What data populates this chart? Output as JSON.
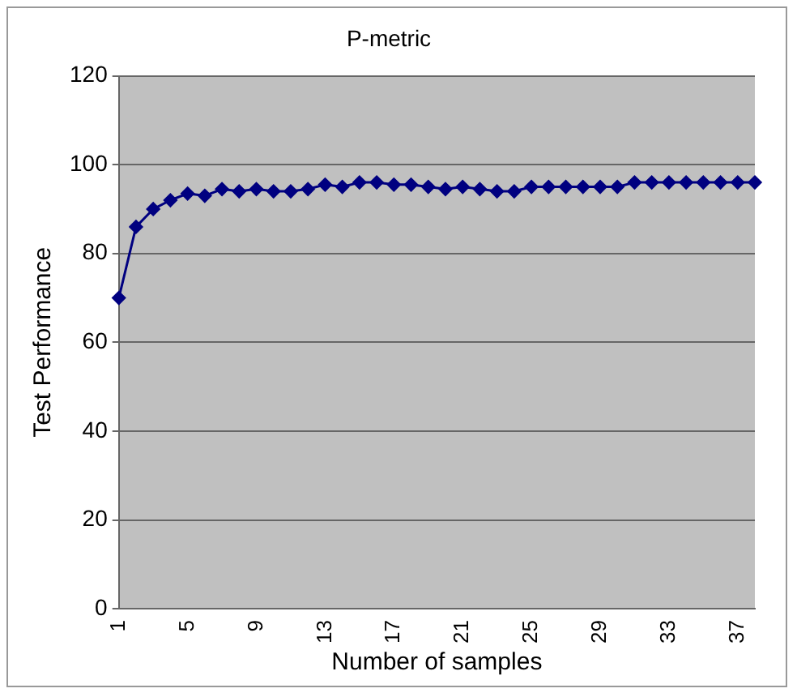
{
  "chart_data": {
    "type": "line",
    "title": "P-metric",
    "xlabel": "Number of samples",
    "ylabel": "Test Performance",
    "categories": [
      "1",
      null,
      null,
      null,
      "5",
      null,
      null,
      null,
      "9",
      null,
      null,
      null,
      "13",
      null,
      null,
      null,
      "17",
      null,
      null,
      null,
      "21",
      null,
      null,
      null,
      "25",
      null,
      null,
      null,
      "29",
      null,
      null,
      null,
      "33",
      null,
      null,
      null,
      "37",
      null
    ],
    "series": [
      {
        "color": "#000080",
        "values": [
          70,
          86,
          90,
          92,
          93.5,
          93,
          94.5,
          94,
          94.5,
          94,
          94,
          94.5,
          95.5,
          95,
          96,
          96,
          95.5,
          95.5,
          95,
          94.5,
          95,
          94.5,
          94,
          94,
          95,
          95,
          95,
          95,
          95,
          95,
          96,
          96,
          96,
          96,
          96,
          96,
          96,
          96
        ]
      }
    ],
    "ylim": [
      0,
      120
    ],
    "yticks": [
      0,
      20,
      40,
      60,
      80,
      100,
      120
    ],
    "grid": "y",
    "legend": false,
    "marker": "diamond",
    "line_style": "solid"
  }
}
